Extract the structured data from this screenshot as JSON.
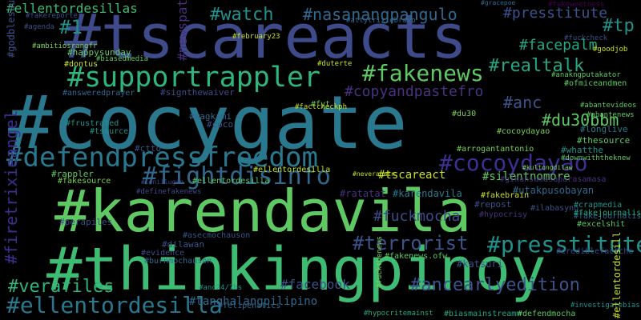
{
  "background": "#000000",
  "palette": {
    "purple": "#3b2f8f",
    "indigo": "#3e4a89",
    "blue": "#31688e",
    "teal": "#26828e",
    "green": "#1f9e89",
    "mint": "#35b779",
    "lime": "#6ece58",
    "yellow": "#c8e020"
  },
  "words": [
    {
      "text": "#cocygate",
      "color": "#2a788e"
    },
    {
      "text": "#tscareacts",
      "color": "#3e4a89"
    },
    {
      "text": "#karendavila",
      "color": "#5ec962"
    },
    {
      "text": "#thinkingpinoy",
      "color": "#3fbc73"
    },
    {
      "text": "#defendpressfreedom",
      "color": "#2a788e"
    },
    {
      "text": "#supportrappler",
      "color": "#2fb47c"
    },
    {
      "text": "#fightdisinfo",
      "color": "#31688e"
    },
    {
      "text": "#cocoydayao",
      "color": "#3b2f8f"
    },
    {
      "text": "#ellentordesilla",
      "color": "#2a788e"
    },
    {
      "text": "#fakenews",
      "color": "#5ec962"
    },
    {
      "text": "#watch",
      "color": "#21918c"
    },
    {
      "text": "#nasanangpangulo",
      "color": "#31688e"
    },
    {
      "text": "#presstitute",
      "color": "#3b528b"
    },
    {
      "text": "#presstitutes",
      "color": "#21918c"
    },
    {
      "text": "#1",
      "color": "#21918c"
    },
    {
      "text": "#realtalk",
      "color": "#22a884"
    },
    {
      "text": "#anc",
      "color": "#3b528b"
    },
    {
      "text": "#terrorist",
      "color": "#3b528b"
    },
    {
      "text": "#verafiles",
      "color": "#2fb47c"
    },
    {
      "text": "#facepalm",
      "color": "#22a884"
    },
    {
      "text": "#fuckmocha",
      "color": "#3e4a89"
    },
    {
      "text": "#copyandpastefro",
      "color": "#46327e"
    },
    {
      "text": "#ellentordesillas",
      "color": "#3fbc73"
    },
    {
      "text": "#tp",
      "color": "#21918c"
    },
    {
      "text": "#newspatrol",
      "color": "#46327e"
    },
    {
      "text": "#du30bbm",
      "color": "#5ec962"
    },
    {
      "text": "#firetrixieangel",
      "color": "#3b2f8f"
    },
    {
      "text": "#ancearlyedition",
      "color": "#3b528b"
    },
    {
      "text": "#facebook",
      "color": "#3b528b"
    },
    {
      "text": "#tanghalangpilipino",
      "color": "#31688e"
    },
    {
      "text": "#fakeweetness",
      "color": "#440154"
    },
    {
      "text": "#tscareact",
      "color": "#c8e020"
    },
    {
      "text": "#silentnomore",
      "color": "#5ec962"
    },
    {
      "text": "#katsuri",
      "color": "#3b528b"
    },
    {
      "text": "#ratatat",
      "color": "#46327e"
    },
    {
      "text": "#karendavila",
      "color": "#2a788e"
    },
    {
      "text": "#utakpusobayan",
      "color": "#31688e"
    },
    {
      "text": "#gikansamasaparasamasa",
      "color": "#46327e"
    },
    {
      "text": "#answeredprayer",
      "color": "#31688e"
    },
    {
      "text": "#wagkami",
      "color": "#31688e"
    },
    {
      "text": "#signthewaiver",
      "color": "#3e4a89"
    },
    {
      "text": "#arrogantantonio",
      "color": "#7ad151"
    },
    {
      "text": "#whatthe",
      "color": "#21918c"
    },
    {
      "text": "#thesource",
      "color": "#5ec962"
    },
    {
      "text": "#longlive",
      "color": "#2a788e"
    },
    {
      "text": "#fakejournalist",
      "color": "#31688e"
    },
    {
      "text": "#ellentordesilla",
      "color": "#c8e020"
    },
    {
      "text": "#rappler",
      "color": "#5ec962"
    },
    {
      "text": "#fakesource",
      "color": "#7ad151"
    },
    {
      "text": "#perapiles",
      "color": "#3e4a89"
    },
    {
      "text": "#dilawan",
      "color": "#3b528b"
    },
    {
      "text": "#evidence",
      "color": "#3e4a89"
    },
    {
      "text": "#burnmochauson",
      "color": "#31688e"
    },
    {
      "text": "#asecmochauson",
      "color": "#3b528b"
    },
    {
      "text": "#happysunday",
      "color": "#5ec962"
    },
    {
      "text": "#frustrated",
      "color": "#21918c"
    },
    {
      "text": "#fakebrain",
      "color": "#c8e020"
    },
    {
      "text": "#repost",
      "color": "#3b528b"
    },
    {
      "text": "#crapmedia",
      "color": "#21918c"
    },
    {
      "text": "#fakejournalists",
      "color": "#22a884"
    },
    {
      "text": "#excelshit",
      "color": "#5ec962"
    },
    {
      "text": "#ilabasyno",
      "color": "#3b528b"
    },
    {
      "text": "#hypocrisy",
      "color": "#46327e"
    },
    {
      "text": "#fakenews.ofw",
      "color": "#5ec962"
    },
    {
      "text": "#dontus",
      "color": "#c8e020"
    },
    {
      "text": "#fyt",
      "color": "#5ec962"
    },
    {
      "text": "#du30",
      "color": "#7ad151"
    },
    {
      "text": "#goodjob",
      "color": "#c8e020"
    },
    {
      "text": "#february23",
      "color": "#c8e020"
    },
    {
      "text": "#fuckcheck",
      "color": "#3b528b"
    },
    {
      "text": "#cocoydayao",
      "color": "#7ad151"
    },
    {
      "text": "#ellentordesilla",
      "color": "#5ec962"
    },
    {
      "text": "#abantenews",
      "color": "#5ec962"
    },
    {
      "text": "#ofmiceandmen",
      "color": "#5ec962"
    },
    {
      "text": "#anakngputakator",
      "color": "#5ec962"
    },
    {
      "text": "#abantevideos",
      "color": "#5ec962"
    },
    {
      "text": "#downwiththeknew",
      "color": "#5ec962"
    },
    {
      "text": "#factcheckph",
      "color": "#c8e020"
    },
    {
      "text": "#duterte",
      "color": "#c8e020"
    },
    {
      "text": "#biasmainstreamm",
      "color": "#22a884"
    },
    {
      "text": "#defendmocha",
      "color": "#5ec962"
    },
    {
      "text": "#godblessusall",
      "color": "#3b528b"
    },
    {
      "text": "#ambitiosrangfr",
      "color": "#7ad151"
    },
    {
      "text": "#fakereporter",
      "color": "#3b528b"
    },
    {
      "text": "#agenda",
      "color": "#3b528b"
    },
    {
      "text": "#gracepoe",
      "color": "#31688e"
    },
    {
      "text": "#attytrixiebravo",
      "color": "#31688e"
    },
    {
      "text": "#definefakenews",
      "color": "#3e4a89"
    },
    {
      "text": "#leniilugan",
      "color": "#3e4a89"
    },
    {
      "text": "#neveragain",
      "color": "#c8e020"
    },
    {
      "text": "#kultongdilaw",
      "color": "#7ad151"
    },
    {
      "text": "#ctto",
      "color": "#3b528b"
    },
    {
      "text": "#coco",
      "color": "#3b528b"
    },
    {
      "text": "#tsource",
      "color": "#21918c"
    },
    {
      "text": "#anc24/7bs",
      "color": "#21918c"
    },
    {
      "text": "#felipenatics",
      "color": "#31688e"
    },
    {
      "text": "#investigatebias",
      "color": "#21918c"
    },
    {
      "text": "#crediblefactche",
      "color": "#3e4a89"
    },
    {
      "text": "#ellentordesill",
      "color": "#c8e020"
    },
    {
      "text": "#hypocritemainst",
      "color": "#22a884"
    },
    {
      "text": "#fuckthenews",
      "color": "#7ad151"
    },
    {
      "text": "#biasedmedia",
      "color": "#5ec962"
    }
  ]
}
